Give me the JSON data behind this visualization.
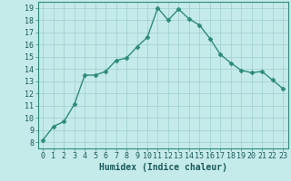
{
  "x": [
    0,
    1,
    2,
    3,
    4,
    5,
    6,
    7,
    8,
    9,
    10,
    11,
    12,
    13,
    14,
    15,
    16,
    17,
    18,
    19,
    20,
    21,
    22,
    23
  ],
  "y": [
    8.2,
    9.3,
    9.7,
    11.1,
    13.5,
    13.5,
    13.8,
    14.7,
    14.9,
    15.8,
    16.6,
    19.0,
    18.0,
    18.9,
    18.1,
    17.6,
    16.5,
    15.2,
    14.5,
    13.9,
    13.7,
    13.8,
    13.1,
    12.4
  ],
  "line_color": "#2e8b7a",
  "marker_color": "#2e8b7a",
  "bg_color": "#c5eaea",
  "grid_color": "#9dcece",
  "xlabel": "Humidex (Indice chaleur)",
  "xlim": [
    -0.5,
    23.5
  ],
  "ylim": [
    7.5,
    19.5
  ],
  "xticks": [
    0,
    1,
    2,
    3,
    4,
    5,
    6,
    7,
    8,
    9,
    10,
    11,
    12,
    13,
    14,
    15,
    16,
    17,
    18,
    19,
    20,
    21,
    22,
    23
  ],
  "yticks": [
    8,
    9,
    10,
    11,
    12,
    13,
    14,
    15,
    16,
    17,
    18,
    19
  ],
  "xlabel_fontsize": 7,
  "tick_fontsize": 6,
  "linewidth": 1.0,
  "markersize": 2.5
}
